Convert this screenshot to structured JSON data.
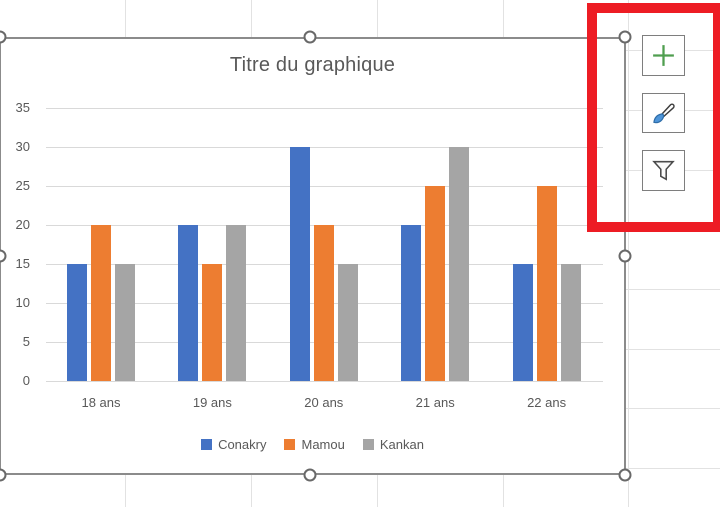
{
  "chart_data": {
    "type": "bar",
    "title": "Titre du graphique",
    "categories": [
      "18 ans",
      "19 ans",
      "20 ans",
      "21 ans",
      "22 ans"
    ],
    "series": [
      {
        "name": "Conakry",
        "color": "#4472C4",
        "values": [
          15,
          20,
          30,
          20,
          15
        ]
      },
      {
        "name": "Mamou",
        "color": "#ED7D31",
        "values": [
          20,
          15,
          20,
          25,
          25
        ]
      },
      {
        "name": "Kankan",
        "color": "#A5A5A5",
        "values": [
          15,
          20,
          15,
          30,
          15
        ]
      }
    ],
    "ylim": [
      0,
      35
    ],
    "yticks": [
      0,
      5,
      10,
      15,
      20,
      25,
      30,
      35
    ],
    "grid": true,
    "legend_position": "bottom",
    "xlabel": "",
    "ylabel": ""
  },
  "chart_tools": {
    "buttons": [
      {
        "name": "chart-elements",
        "icon": "plus-icon"
      },
      {
        "name": "chart-styles",
        "icon": "brush-icon"
      },
      {
        "name": "chart-filters",
        "icon": "funnel-icon"
      }
    ],
    "plus_color": "#4F9E4F",
    "brush_blue": "#4E95D9",
    "brush_outline": "#3C3C3C",
    "funnel_fill": "#FAFAFA",
    "funnel_outline": "#4A4A4A"
  },
  "annotation": {
    "color": "#ED1C24"
  },
  "colors": {
    "text_gray": "#595959",
    "chart_gridline": "#D9D9D9",
    "worksheet_gridline": "#E2E2E2",
    "selection_border": "#8B8B8B"
  }
}
